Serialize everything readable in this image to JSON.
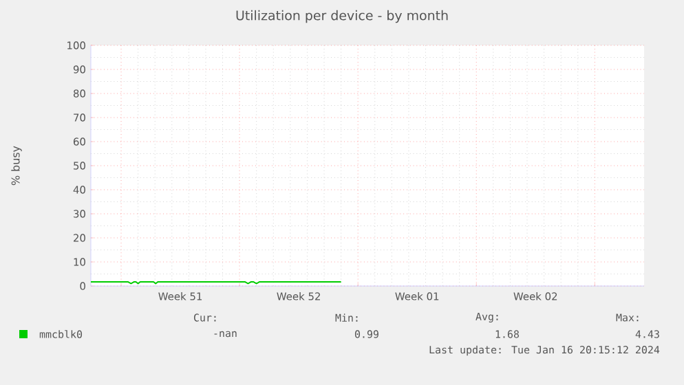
{
  "chart_data": {
    "type": "line",
    "title": "Utilization per device - by month",
    "ylabel": "% busy",
    "x": [
      "2023-12-16T05:00",
      "2023-12-18T10:00",
      "2023-12-18T14:00",
      "2023-12-18T18:00",
      "2023-12-18T21:00",
      "2023-12-19T00:00",
      "2023-12-19T03:00",
      "2023-12-19T22:00",
      "2023-12-20T01:00",
      "2023-12-20T04:00",
      "2023-12-25T08:00",
      "2023-12-25T12:00",
      "2023-12-25T16:00",
      "2023-12-25T20:00",
      "2023-12-26T00:00",
      "2023-12-26T04:00",
      "2023-12-31T00:00"
    ],
    "series": [
      {
        "name": "mmcblk0",
        "color": "#00cc00",
        "values": [
          1.7,
          1.7,
          1.0,
          1.7,
          1.7,
          1.0,
          1.7,
          1.7,
          1.0,
          1.7,
          1.7,
          1.0,
          1.7,
          1.7,
          1.0,
          1.7,
          1.7
        ]
      }
    ],
    "xlim": [
      "2023-12-16T05:00",
      "2024-01-17T22:00"
    ],
    "xticks": [
      {
        "value": "2023-12-18",
        "label": null
      },
      {
        "value": "2023-12-21T12:00",
        "label": "Week 51"
      },
      {
        "value": "2023-12-25",
        "label": null
      },
      {
        "value": "2023-12-28T12:00",
        "label": "Week 52"
      },
      {
        "value": "2024-01-01",
        "label": null
      },
      {
        "value": "2024-01-04T12:00",
        "label": "Week 01"
      },
      {
        "value": "2024-01-08",
        "label": null
      },
      {
        "value": "2024-01-11T12:00",
        "label": "Week 02"
      },
      {
        "value": "2024-01-15",
        "label": null
      }
    ],
    "ylim": [
      0,
      100
    ],
    "yticks": [
      0,
      10,
      20,
      30,
      40,
      50,
      60,
      70,
      80,
      90,
      100
    ],
    "grid": true,
    "legend": "bottom",
    "annotations": [
      "Cur:",
      "Min:",
      "Avg:",
      "Max:",
      "-nan",
      "0.99",
      "1.68",
      "4.43",
      "Last update:  Tue Jan 16 20:15:12 2024"
    ]
  }
}
